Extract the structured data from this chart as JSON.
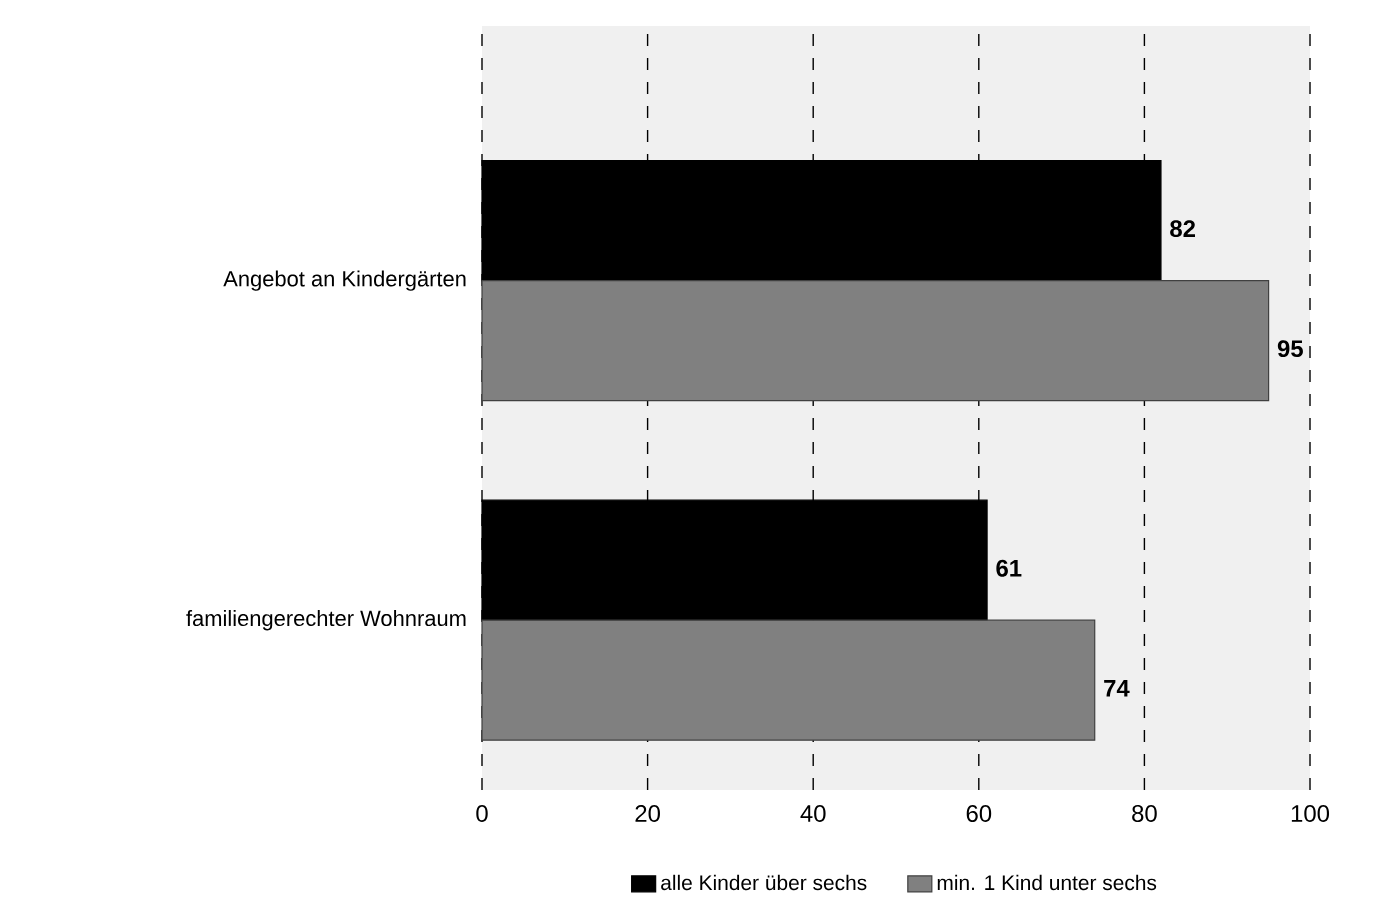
{
  "chart_data": {
    "type": "bar",
    "orientation": "horizontal",
    "categories": [
      "Angebot an Kindergärten",
      "familiengerechter Wohnraum"
    ],
    "series": [
      {
        "name": "alle Kinder über sechs",
        "color": "#000000",
        "values": [
          82,
          61
        ]
      },
      {
        "name": "min. 1 Kind unter sechs",
        "color": "#808080",
        "values": [
          95,
          74
        ]
      }
    ],
    "xlim": [
      0,
      100
    ],
    "xticks": [
      0,
      20,
      40,
      60,
      80,
      100
    ],
    "grid": "x",
    "legend": "bottom",
    "data_labels": true
  }
}
